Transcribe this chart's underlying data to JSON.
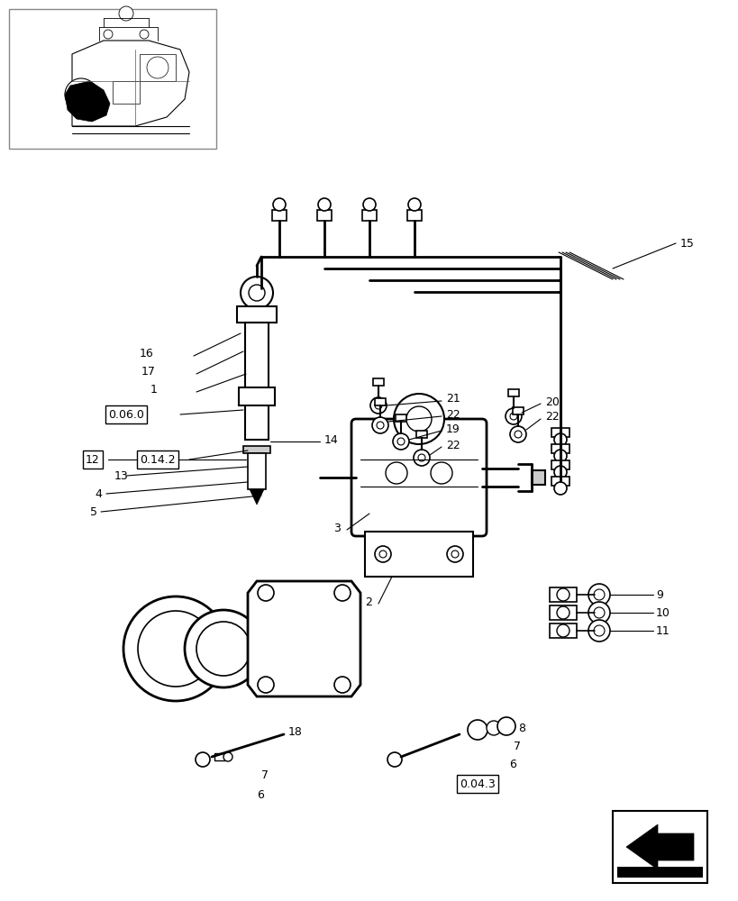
{
  "bg_color": "#ffffff",
  "line_color": "#000000",
  "figure_width": 8.2,
  "figure_height": 10.0,
  "dpi": 100
}
